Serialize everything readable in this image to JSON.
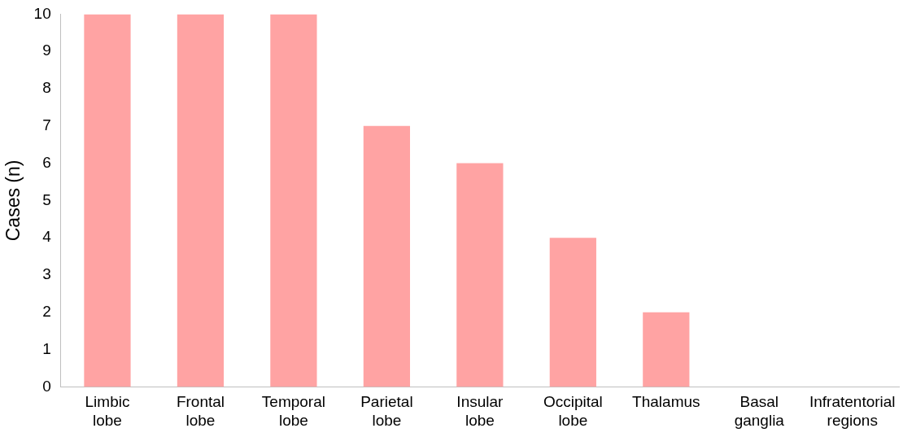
{
  "chart_data": {
    "type": "bar",
    "ylabel": "Cases (n)",
    "categories": [
      "Limbic lobe",
      "Frontal lobe",
      "Temporal lobe",
      "Parietal lobe",
      "Insular lobe",
      "Occipital lobe",
      "Thalamus",
      "Basal ganglia",
      "Infratentorial regions"
    ],
    "values": [
      10,
      10,
      10,
      7,
      6,
      4,
      2,
      0,
      0
    ],
    "color": "#ffa3a3",
    "ylim": [
      0,
      10
    ],
    "yticks": [
      0,
      1,
      2,
      3,
      4,
      5,
      6,
      7,
      8,
      9,
      10
    ],
    "grid": false,
    "legend": false
  }
}
